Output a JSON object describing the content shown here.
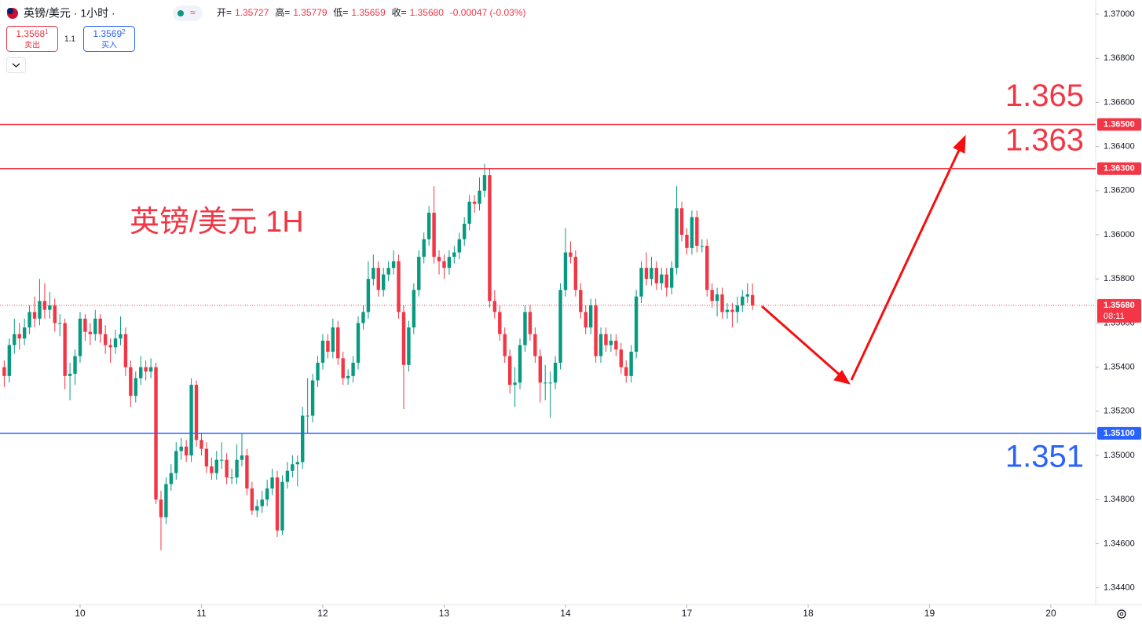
{
  "header": {
    "symbol": "英镑/美元 · 1小时 ·",
    "indicator": "≈",
    "ohlc": [
      {
        "label": "开=",
        "value": "1.35727"
      },
      {
        "label": "高=",
        "value": "1.35779"
      },
      {
        "label": "低=",
        "value": "1.35659"
      },
      {
        "label": "收=",
        "value": "1.35680"
      }
    ],
    "change": "-0.00047 (-0.03%)",
    "sell": {
      "price": "1.3568",
      "price_sup": "1",
      "label": "卖出"
    },
    "spread": "1.1",
    "buy": {
      "price": "1.3569",
      "price_sup": "2",
      "label": "买入"
    }
  },
  "chart_data": {
    "type": "candlestick",
    "title": "英镑/美元 1H",
    "up_color": "#089981",
    "down_color": "#f23645",
    "xlim": [
      -15.84,
      200.86
    ],
    "xticks": [
      {
        "value": 0,
        "label": "10"
      },
      {
        "value": 24,
        "label": "11"
      },
      {
        "value": 48,
        "label": "12"
      },
      {
        "value": 72,
        "label": "13"
      },
      {
        "value": 96,
        "label": "14"
      },
      {
        "value": 120,
        "label": "17"
      },
      {
        "value": 144,
        "label": "18"
      },
      {
        "value": 168,
        "label": "19"
      },
      {
        "value": 192,
        "label": "20"
      }
    ],
    "ylim": [
      1.34324,
      1.37064
    ],
    "yticks": [
      {
        "value": 1.37,
        "label": "1.37000"
      },
      {
        "value": 1.368,
        "label": "1.36800"
      },
      {
        "value": 1.366,
        "label": "1.36600"
      },
      {
        "value": 1.364,
        "label": "1.36400"
      },
      {
        "value": 1.362,
        "label": "1.36200"
      },
      {
        "value": 1.36,
        "label": "1.36000"
      },
      {
        "value": 1.358,
        "label": "1.35800"
      },
      {
        "value": 1.356,
        "label": "1.35600"
      },
      {
        "value": 1.354,
        "label": "1.35400"
      },
      {
        "value": 1.352,
        "label": "1.35200"
      },
      {
        "value": 1.35,
        "label": "1.35000"
      },
      {
        "value": 1.348,
        "label": "1.34800"
      },
      {
        "value": 1.346,
        "label": "1.34600"
      },
      {
        "value": 1.344,
        "label": "1.34400"
      }
    ],
    "x": [
      -15,
      -14,
      -13,
      -12,
      -11,
      -10,
      -9,
      -8,
      -7,
      -6,
      -5,
      -4,
      -3,
      -2,
      -1,
      0,
      1,
      2,
      3,
      4,
      5,
      6,
      7,
      8,
      9,
      10,
      11,
      12,
      13,
      14,
      15,
      16,
      17,
      18,
      19,
      20,
      21,
      22,
      23,
      24,
      25,
      26,
      27,
      28,
      29,
      30,
      31,
      32,
      33,
      34,
      35,
      36,
      37,
      38,
      39,
      40,
      41,
      42,
      43,
      44,
      45,
      46,
      47,
      48,
      49,
      50,
      51,
      52,
      53,
      54,
      55,
      56,
      57,
      58,
      59,
      60,
      61,
      62,
      63,
      64,
      65,
      66,
      67,
      68,
      69,
      70,
      71,
      72,
      73,
      74,
      75,
      76,
      77,
      78,
      79,
      80,
      81,
      82,
      83,
      84,
      85,
      86,
      87,
      88,
      89,
      90,
      91,
      92,
      93,
      94,
      95,
      96,
      97,
      98,
      99,
      100,
      101,
      102,
      103,
      104,
      105,
      106,
      107,
      108,
      109,
      110,
      111,
      112,
      113,
      114,
      115,
      116,
      117,
      118,
      119,
      120,
      121,
      122,
      123,
      124,
      125,
      126,
      127,
      128,
      129,
      130,
      131,
      132,
      133
    ],
    "ohlc": [
      [
        1.354,
        1.3543,
        1.3531,
        1.3536
      ],
      [
        1.3536,
        1.3553,
        1.3533,
        1.355
      ],
      [
        1.355,
        1.3562,
        1.3546,
        1.3555
      ],
      [
        1.3555,
        1.356,
        1.3548,
        1.3553
      ],
      [
        1.3553,
        1.3562,
        1.355,
        1.3558
      ],
      [
        1.3558,
        1.3568,
        1.3555,
        1.3565
      ],
      [
        1.3565,
        1.3572,
        1.3558,
        1.3562
      ],
      [
        1.3562,
        1.358,
        1.3559,
        1.357
      ],
      [
        1.357,
        1.3578,
        1.3562,
        1.3566
      ],
      [
        1.3566,
        1.3574,
        1.3562,
        1.3568
      ],
      [
        1.3568,
        1.3571,
        1.3556,
        1.356
      ],
      [
        1.356,
        1.3564,
        1.3554,
        1.356
      ],
      [
        1.356,
        1.3562,
        1.353,
        1.3536
      ],
      [
        1.3536,
        1.3542,
        1.3525,
        1.3537
      ],
      [
        1.3537,
        1.3548,
        1.3532,
        1.3545
      ],
      [
        1.3545,
        1.3565,
        1.3542,
        1.3562
      ],
      [
        1.3562,
        1.3564,
        1.3552,
        1.3556
      ],
      [
        1.3556,
        1.356,
        1.355,
        1.3555
      ],
      [
        1.3555,
        1.3566,
        1.3552,
        1.3562
      ],
      [
        1.3562,
        1.3564,
        1.3551,
        1.3555
      ],
      [
        1.3555,
        1.3559,
        1.3546,
        1.355
      ],
      [
        1.355,
        1.3553,
        1.3542,
        1.3549
      ],
      [
        1.3549,
        1.3557,
        1.3546,
        1.3553
      ],
      [
        1.3553,
        1.3563,
        1.355,
        1.3555
      ],
      [
        1.3555,
        1.3558,
        1.3536,
        1.354
      ],
      [
        1.354,
        1.3543,
        1.3522,
        1.3527
      ],
      [
        1.3527,
        1.3538,
        1.3524,
        1.3535
      ],
      [
        1.3535,
        1.3545,
        1.3532,
        1.354
      ],
      [
        1.354,
        1.3543,
        1.3534,
        1.3538
      ],
      [
        1.3538,
        1.3544,
        1.3535,
        1.354
      ],
      [
        1.354,
        1.3542,
        1.3478,
        1.348
      ],
      [
        1.348,
        1.3484,
        1.3457,
        1.3472
      ],
      [
        1.3472,
        1.349,
        1.3469,
        1.3487
      ],
      [
        1.3487,
        1.3496,
        1.3484,
        1.3492
      ],
      [
        1.3492,
        1.3506,
        1.3489,
        1.3502
      ],
      [
        1.3502,
        1.3508,
        1.3498,
        1.3504
      ],
      [
        1.3504,
        1.3507,
        1.3497,
        1.35
      ],
      [
        1.35,
        1.3535,
        1.3497,
        1.3532
      ],
      [
        1.3532,
        1.3534,
        1.3504,
        1.3507
      ],
      [
        1.3507,
        1.351,
        1.35,
        1.3503
      ],
      [
        1.3503,
        1.3506,
        1.3492,
        1.3495
      ],
      [
        1.3495,
        1.3499,
        1.3489,
        1.3492
      ],
      [
        1.3492,
        1.3502,
        1.3489,
        1.3498
      ],
      [
        1.3498,
        1.3506,
        1.3494,
        1.3498
      ],
      [
        1.3498,
        1.3501,
        1.3487,
        1.349
      ],
      [
        1.349,
        1.3494,
        1.3487,
        1.349
      ],
      [
        1.349,
        1.3505,
        1.3487,
        1.3498
      ],
      [
        1.3498,
        1.351,
        1.3495,
        1.35
      ],
      [
        1.35,
        1.3503,
        1.3482,
        1.3485
      ],
      [
        1.3485,
        1.3488,
        1.3473,
        1.3475
      ],
      [
        1.3475,
        1.348,
        1.3472,
        1.3477
      ],
      [
        1.3477,
        1.3484,
        1.3474,
        1.348
      ],
      [
        1.348,
        1.3489,
        1.3477,
        1.3485
      ],
      [
        1.3485,
        1.3494,
        1.3482,
        1.349
      ],
      [
        1.349,
        1.3493,
        1.3463,
        1.3466
      ],
      [
        1.3466,
        1.3491,
        1.3464,
        1.3488
      ],
      [
        1.3488,
        1.3497,
        1.3485,
        1.3493
      ],
      [
        1.3493,
        1.35,
        1.349,
        1.3496
      ],
      [
        1.3496,
        1.35,
        1.3486,
        1.3497
      ],
      [
        1.3497,
        1.3522,
        1.3494,
        1.3518
      ],
      [
        1.3518,
        1.3535,
        1.351,
        1.3518
      ],
      [
        1.3518,
        1.3537,
        1.3515,
        1.3534
      ],
      [
        1.3534,
        1.3545,
        1.3531,
        1.3542
      ],
      [
        1.3542,
        1.3555,
        1.3539,
        1.3552
      ],
      [
        1.3552,
        1.3555,
        1.3544,
        1.3547
      ],
      [
        1.3547,
        1.3562,
        1.3544,
        1.3558
      ],
      [
        1.3558,
        1.3561,
        1.3541,
        1.3544
      ],
      [
        1.3544,
        1.3547,
        1.3532,
        1.3535
      ],
      [
        1.3535,
        1.3539,
        1.3532,
        1.3536
      ],
      [
        1.3536,
        1.3545,
        1.3533,
        1.3542
      ],
      [
        1.3542,
        1.3563,
        1.3539,
        1.356
      ],
      [
        1.356,
        1.3568,
        1.3557,
        1.3565
      ],
      [
        1.3565,
        1.3588,
        1.3562,
        1.358
      ],
      [
        1.358,
        1.3591,
        1.3577,
        1.3585
      ],
      [
        1.3585,
        1.3588,
        1.3572,
        1.3575
      ],
      [
        1.3575,
        1.3585,
        1.3572,
        1.3582
      ],
      [
        1.3582,
        1.3588,
        1.3579,
        1.3585
      ],
      [
        1.3585,
        1.3593,
        1.3582,
        1.3588
      ],
      [
        1.3588,
        1.3591,
        1.3562,
        1.3565
      ],
      [
        1.3565,
        1.3568,
        1.3521,
        1.3541
      ],
      [
        1.3541,
        1.3561,
        1.3538,
        1.3558
      ],
      [
        1.3558,
        1.3578,
        1.3555,
        1.3575
      ],
      [
        1.3575,
        1.3593,
        1.3572,
        1.359
      ],
      [
        1.359,
        1.3601,
        1.3587,
        1.3598
      ],
      [
        1.3598,
        1.3613,
        1.3595,
        1.361
      ],
      [
        1.361,
        1.3622,
        1.3587,
        1.359
      ],
      [
        1.359,
        1.3593,
        1.3582,
        1.3588
      ],
      [
        1.3588,
        1.3591,
        1.358,
        1.3585
      ],
      [
        1.3585,
        1.3593,
        1.3582,
        1.359
      ],
      [
        1.359,
        1.3595,
        1.3587,
        1.3592
      ],
      [
        1.3592,
        1.3601,
        1.3589,
        1.3598
      ],
      [
        1.3598,
        1.3608,
        1.3595,
        1.3605
      ],
      [
        1.3605,
        1.3618,
        1.3602,
        1.3615
      ],
      [
        1.3615,
        1.3618,
        1.361,
        1.3614
      ],
      [
        1.3614,
        1.3626,
        1.3611,
        1.362
      ],
      [
        1.362,
        1.3632,
        1.3617,
        1.3627
      ],
      [
        1.3627,
        1.363,
        1.3567,
        1.357
      ],
      [
        1.357,
        1.3575,
        1.3562,
        1.3565
      ],
      [
        1.3565,
        1.3568,
        1.3552,
        1.3555
      ],
      [
        1.3555,
        1.3558,
        1.3542,
        1.3545
      ],
      [
        1.3545,
        1.3548,
        1.3528,
        1.3532
      ],
      [
        1.3532,
        1.354,
        1.3522,
        1.3533
      ],
      [
        1.3533,
        1.3553,
        1.353,
        1.355
      ],
      [
        1.355,
        1.3568,
        1.3547,
        1.3565
      ],
      [
        1.3565,
        1.3568,
        1.3552,
        1.3555
      ],
      [
        1.3555,
        1.3558,
        1.3542,
        1.3545
      ],
      [
        1.3545,
        1.3548,
        1.3524,
        1.3533
      ],
      [
        1.3533,
        1.3541,
        1.3525,
        1.3533
      ],
      [
        1.3533,
        1.3538,
        1.3517,
        1.3533
      ],
      [
        1.3533,
        1.3545,
        1.353,
        1.3542
      ],
      [
        1.3542,
        1.3578,
        1.3539,
        1.3575
      ],
      [
        1.3575,
        1.3603,
        1.3572,
        1.3592
      ],
      [
        1.3592,
        1.3597,
        1.3587,
        1.359
      ],
      [
        1.359,
        1.3593,
        1.3572,
        1.3575
      ],
      [
        1.3575,
        1.3578,
        1.3562,
        1.3565
      ],
      [
        1.3565,
        1.3568,
        1.3555,
        1.3558
      ],
      [
        1.3558,
        1.3571,
        1.3555,
        1.3568
      ],
      [
        1.3568,
        1.3571,
        1.3542,
        1.3545
      ],
      [
        1.3545,
        1.3558,
        1.3542,
        1.3555
      ],
      [
        1.3555,
        1.3558,
        1.3547,
        1.355
      ],
      [
        1.355,
        1.3555,
        1.3547,
        1.3552
      ],
      [
        1.3552,
        1.3555,
        1.3545,
        1.3548
      ],
      [
        1.3548,
        1.3551,
        1.3537,
        1.354
      ],
      [
        1.354,
        1.3543,
        1.3533,
        1.3536
      ],
      [
        1.3536,
        1.355,
        1.3533,
        1.3547
      ],
      [
        1.3547,
        1.3575,
        1.3544,
        1.3572
      ],
      [
        1.3572,
        1.3588,
        1.3569,
        1.3585
      ],
      [
        1.3585,
        1.3592,
        1.3577,
        1.358
      ],
      [
        1.358,
        1.359,
        1.3577,
        1.3585
      ],
      [
        1.3585,
        1.3588,
        1.3575,
        1.3578
      ],
      [
        1.3578,
        1.3585,
        1.3575,
        1.3582
      ],
      [
        1.3582,
        1.3585,
        1.3572,
        1.3576
      ],
      [
        1.3576,
        1.3588,
        1.3573,
        1.3585
      ],
      [
        1.3585,
        1.3622,
        1.3582,
        1.3612
      ],
      [
        1.3612,
        1.3615,
        1.3597,
        1.36
      ],
      [
        1.36,
        1.3603,
        1.3591,
        1.3594
      ],
      [
        1.3594,
        1.3611,
        1.3591,
        1.3608
      ],
      [
        1.3608,
        1.3611,
        1.3592,
        1.3595
      ],
      [
        1.3595,
        1.3598,
        1.3592,
        1.3595
      ],
      [
        1.3595,
        1.3598,
        1.3572,
        1.3575
      ],
      [
        1.3575,
        1.3578,
        1.3567,
        1.357
      ],
      [
        1.357,
        1.3576,
        1.3563,
        1.3573
      ],
      [
        1.3573,
        1.3576,
        1.3562,
        1.3565
      ],
      [
        1.3565,
        1.3569,
        1.3562,
        1.3566
      ],
      [
        1.3566,
        1.3569,
        1.3558,
        1.3565
      ],
      [
        1.3565,
        1.3572,
        1.356,
        1.3568
      ],
      [
        1.3568,
        1.3575,
        1.3565,
        1.3572
      ],
      [
        1.3572,
        1.3578,
        1.3569,
        1.3573
      ],
      [
        1.35727,
        1.35779,
        1.35659,
        1.3568
      ]
    ],
    "levels": [
      {
        "value": 1.365,
        "label": "1.36500",
        "text": "1.365",
        "color": "#f23645"
      },
      {
        "value": 1.363,
        "label": "1.36300",
        "text": "1.363",
        "color": "#f23645"
      },
      {
        "value": 1.351,
        "label": "1.35100",
        "text": "1.351",
        "color": "#2962ff"
      }
    ],
    "last": {
      "value": 1.3568,
      "label": "1.35680",
      "countdown": "08:11",
      "color": "#f23645"
    }
  }
}
